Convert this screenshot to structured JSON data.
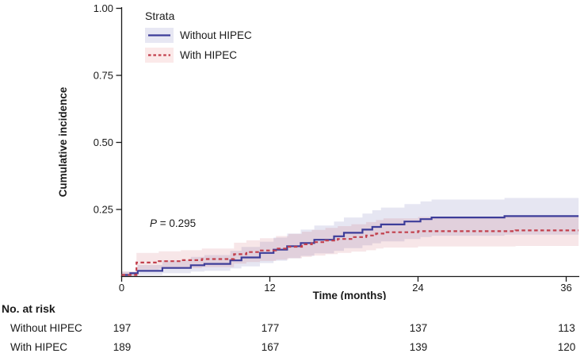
{
  "chart_data": {
    "type": "line",
    "subtype": "cumulative-incidence-step-curves-with-confidence-bands",
    "title": "",
    "xlabel": "Time (months)",
    "ylabel": "Cumulative incidence",
    "xlim": [
      0,
      37
    ],
    "ylim": [
      0,
      1.0
    ],
    "grid": false,
    "xticks": {
      "values": [
        0,
        12,
        24,
        36
      ],
      "labels": [
        "0",
        "12",
        "24",
        "36"
      ]
    },
    "yticks": {
      "values": [
        0.25,
        0.5,
        0.75,
        1.0
      ],
      "labels": [
        "0.25",
        "0.50",
        "0.75",
        "1.00"
      ]
    },
    "legend": {
      "title": "Strata",
      "position": "top-left-inside"
    },
    "annotation": {
      "pvalue_italic": "P",
      "pvalue_rest": " = 0.295"
    },
    "axis_color": "#1a1a1a",
    "series": [
      {
        "name": "Without HIPEC",
        "color": "#3d3d99",
        "line_style": "solid",
        "key_bg": "#e7e7f3",
        "band_color": "rgba(61,61,153,0.13)",
        "steps": [
          [
            0,
            0.006
          ],
          [
            0.7,
            0.012
          ],
          [
            1.3,
            0.021
          ],
          [
            3.3,
            0.032
          ],
          [
            5.6,
            0.042
          ],
          [
            6.7,
            0.047
          ],
          [
            8.8,
            0.06
          ],
          [
            9.7,
            0.071
          ],
          [
            11.2,
            0.088
          ],
          [
            12.3,
            0.1
          ],
          [
            13.4,
            0.113
          ],
          [
            14.5,
            0.125
          ],
          [
            15.6,
            0.137
          ],
          [
            17.2,
            0.15
          ],
          [
            18.0,
            0.163
          ],
          [
            19.5,
            0.175
          ],
          [
            20.3,
            0.185
          ],
          [
            21.0,
            0.194
          ],
          [
            22.9,
            0.205
          ],
          [
            24.2,
            0.214
          ],
          [
            25.1,
            0.22
          ],
          [
            31.0,
            0.225
          ]
        ],
        "band": [
          [
            0,
            0,
            0.018
          ],
          [
            1.3,
            0.006,
            0.043
          ],
          [
            3.3,
            0.012,
            0.06
          ],
          [
            5.6,
            0.018,
            0.073
          ],
          [
            6.7,
            0.021,
            0.08
          ],
          [
            8.8,
            0.03,
            0.096
          ],
          [
            9.7,
            0.038,
            0.11
          ],
          [
            11.2,
            0.05,
            0.13
          ],
          [
            12.3,
            0.059,
            0.145
          ],
          [
            13.4,
            0.068,
            0.16
          ],
          [
            14.5,
            0.077,
            0.175
          ],
          [
            15.6,
            0.086,
            0.19
          ],
          [
            17.2,
            0.096,
            0.205
          ],
          [
            18.0,
            0.106,
            0.22
          ],
          [
            19.5,
            0.116,
            0.235
          ],
          [
            20.3,
            0.124,
            0.247
          ],
          [
            21.0,
            0.131,
            0.257
          ],
          [
            22.9,
            0.14,
            0.27
          ],
          [
            24.2,
            0.147,
            0.28
          ],
          [
            25.1,
            0.152,
            0.287
          ],
          [
            31.0,
            0.156,
            0.293
          ]
        ]
      },
      {
        "name": "With HIPEC",
        "color": "#c2404d",
        "line_style": "dashed",
        "key_bg": "#fbe9e9",
        "band_color": "rgba(194,64,77,0.13)",
        "steps": [
          [
            0,
            0.006
          ],
          [
            1.2,
            0.052
          ],
          [
            3.0,
            0.057
          ],
          [
            4.8,
            0.061
          ],
          [
            6.5,
            0.065
          ],
          [
            9.1,
            0.083
          ],
          [
            10.1,
            0.091
          ],
          [
            11.2,
            0.097
          ],
          [
            12.5,
            0.104
          ],
          [
            13.5,
            0.111
          ],
          [
            14.6,
            0.12
          ],
          [
            15.4,
            0.128
          ],
          [
            16.5,
            0.134
          ],
          [
            17.5,
            0.14
          ],
          [
            18.6,
            0.147
          ],
          [
            19.8,
            0.153
          ],
          [
            20.6,
            0.16
          ],
          [
            21.2,
            0.165
          ],
          [
            24.0,
            0.169
          ],
          [
            31.9,
            0.172
          ]
        ],
        "band": [
          [
            0,
            0,
            0.018
          ],
          [
            1.2,
            0.026,
            0.088
          ],
          [
            3.0,
            0.029,
            0.094
          ],
          [
            4.8,
            0.031,
            0.098
          ],
          [
            6.5,
            0.035,
            0.104
          ],
          [
            9.1,
            0.048,
            0.126
          ],
          [
            10.1,
            0.054,
            0.135
          ],
          [
            11.2,
            0.058,
            0.143
          ],
          [
            12.5,
            0.063,
            0.151
          ],
          [
            13.5,
            0.068,
            0.159
          ],
          [
            14.6,
            0.073,
            0.167
          ],
          [
            15.4,
            0.078,
            0.174
          ],
          [
            16.5,
            0.083,
            0.181
          ],
          [
            17.5,
            0.088,
            0.188
          ],
          [
            18.6,
            0.093,
            0.195
          ],
          [
            19.8,
            0.098,
            0.203
          ],
          [
            20.6,
            0.104,
            0.211
          ],
          [
            21.2,
            0.108,
            0.217
          ],
          [
            24.0,
            0.112,
            0.222
          ],
          [
            31.9,
            0.114,
            0.225
          ]
        ]
      }
    ],
    "risk_table": {
      "title": "No. at risk",
      "times": [
        0,
        12,
        24,
        36
      ],
      "rows": [
        {
          "label": "Without HIPEC",
          "counts": [
            "197",
            "177",
            "137",
            "113"
          ]
        },
        {
          "label": "With HIPEC",
          "counts": [
            "189",
            "167",
            "139",
            "120"
          ]
        }
      ]
    }
  }
}
